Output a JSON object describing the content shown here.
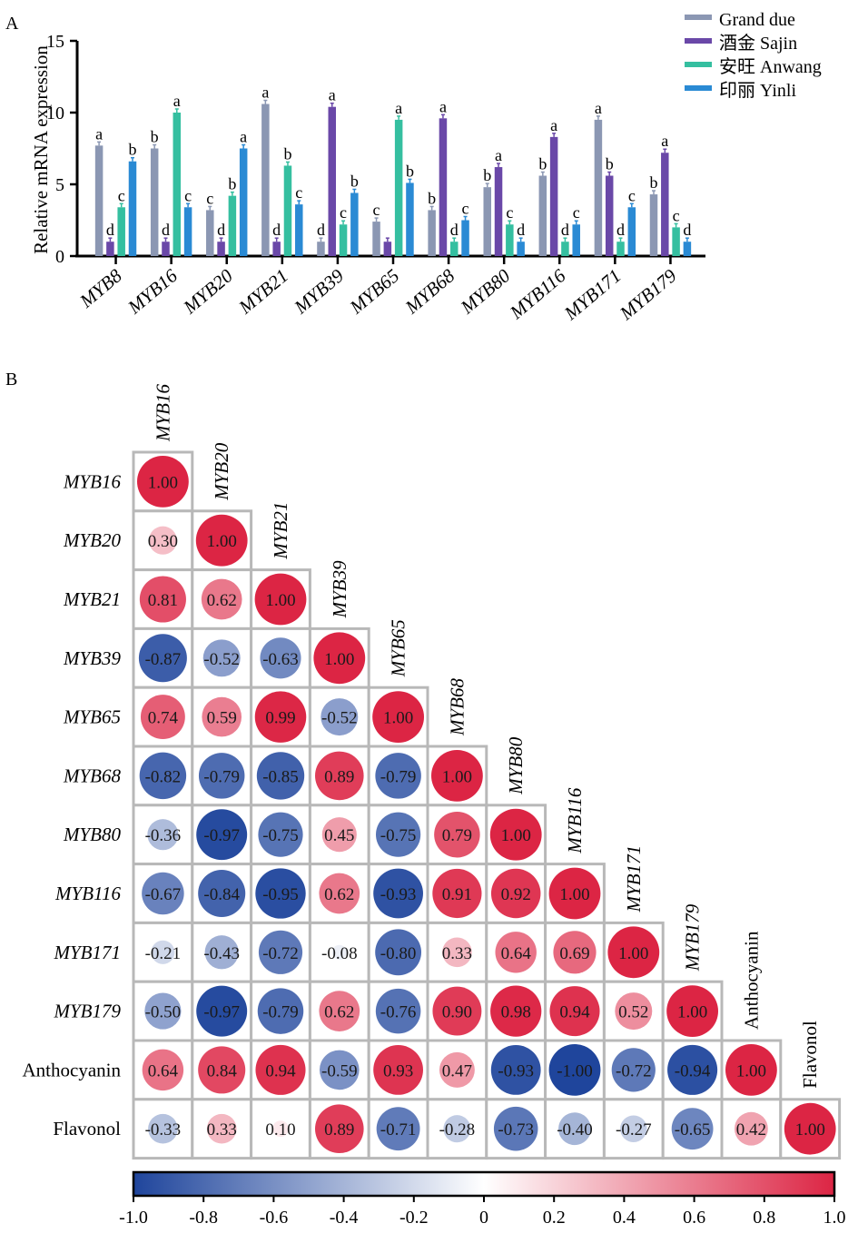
{
  "chart_data": [
    {
      "type": "bar",
      "panel_label": "A",
      "title": "",
      "xlabel": "",
      "ylabel": "Relative mRNA expression",
      "ylim": [
        0,
        15
      ],
      "yticks": [
        "0",
        "5",
        "10",
        "15"
      ],
      "categories": [
        "MYB8",
        "MYB16",
        "MYB20",
        "MYB21",
        "MYB39",
        "MYB65",
        "MYB68",
        "MYB80",
        "MYB116",
        "MYB171",
        "MYB179"
      ],
      "legend_position": "top-right",
      "series": [
        {
          "name": "Grand due",
          "color": "#8b97b3",
          "values": [
            7.7,
            7.5,
            3.2,
            10.6,
            1.0,
            2.4,
            3.2,
            4.8,
            5.6,
            9.5,
            4.3
          ],
          "letters": [
            "a",
            "b",
            "c",
            "a",
            "d",
            "c",
            "b",
            "b",
            "b",
            "a",
            "b"
          ]
        },
        {
          "name": "酒金 Sajin",
          "color": "#6a48a8",
          "values": [
            1.0,
            1.0,
            1.0,
            1.0,
            10.4,
            1.0,
            9.6,
            6.2,
            8.3,
            5.6,
            7.2
          ],
          "letters": [
            "d",
            "d",
            "d",
            "d",
            "a",
            "",
            "a",
            "a",
            "a",
            "b",
            "a"
          ]
        },
        {
          "name": "安旺 Anwang",
          "color": "#35bfa0",
          "values": [
            3.4,
            10.0,
            4.2,
            6.3,
            2.2,
            9.5,
            1.0,
            2.2,
            1.0,
            1.0,
            2.0
          ],
          "letters": [
            "c",
            "a",
            "b",
            "b",
            "c",
            "a",
            "d",
            "c",
            "d",
            "d",
            "c"
          ]
        },
        {
          "name": "印丽 Yinli",
          "color": "#2a8ad4",
          "values": [
            6.6,
            3.4,
            7.5,
            3.6,
            4.4,
            5.1,
            2.5,
            1.0,
            2.2,
            3.4,
            1.0
          ],
          "letters": [
            "b",
            "c",
            "a",
            "c",
            "b",
            "b",
            "c",
            "d",
            "c",
            "c",
            "d"
          ]
        }
      ]
    },
    {
      "type": "heatmap",
      "panel_label": "B",
      "title": "",
      "variables": [
        "MYB16",
        "MYB20",
        "MYB21",
        "MYB39",
        "MYB65",
        "MYB68",
        "MYB80",
        "MYB116",
        "MYB171",
        "MYB179",
        "Anthocyanin",
        "Flavonol"
      ],
      "italic_variables": [
        "MYB16",
        "MYB20",
        "MYB21",
        "MYB39",
        "MYB65",
        "MYB68",
        "MYB80",
        "MYB116",
        "MYB171",
        "MYB179"
      ],
      "lower_triangle": [
        [
          1.0
        ],
        [
          0.3,
          1.0
        ],
        [
          0.81,
          0.62,
          1.0
        ],
        [
          -0.87,
          -0.52,
          -0.63,
          1.0
        ],
        [
          0.74,
          0.59,
          0.99,
          -0.52,
          1.0
        ],
        [
          -0.82,
          -0.79,
          -0.85,
          0.89,
          -0.79,
          1.0
        ],
        [
          -0.36,
          -0.97,
          -0.75,
          0.45,
          -0.75,
          0.79,
          1.0
        ],
        [
          -0.67,
          -0.84,
          -0.95,
          0.62,
          -0.93,
          0.91,
          0.92,
          1.0
        ],
        [
          -0.21,
          -0.43,
          -0.72,
          -0.08,
          -0.8,
          0.33,
          0.64,
          0.69,
          1.0
        ],
        [
          -0.5,
          -0.97,
          -0.79,
          0.62,
          -0.76,
          0.9,
          0.98,
          0.94,
          0.52,
          1.0
        ],
        [
          0.64,
          0.84,
          0.94,
          -0.59,
          0.93,
          0.47,
          -0.93,
          -1.0,
          -0.72,
          -0.94,
          1.0
        ],
        [
          -0.33,
          0.33,
          0.1,
          0.89,
          -0.71,
          -0.28,
          -0.73,
          -0.4,
          -0.27,
          -0.65,
          0.42,
          1.0
        ]
      ],
      "colorbar": {
        "range": [
          -1.0,
          1.0
        ],
        "ticks": [
          "-1.0",
          "-0.8",
          "-0.6",
          "-0.4",
          "-0.2",
          "0",
          "0.2",
          "0.4",
          "0.6",
          "0.8",
          "1.0"
        ],
        "low_color": "#1f459c",
        "mid_color": "#ffffff",
        "high_color": "#dc2544"
      }
    }
  ]
}
